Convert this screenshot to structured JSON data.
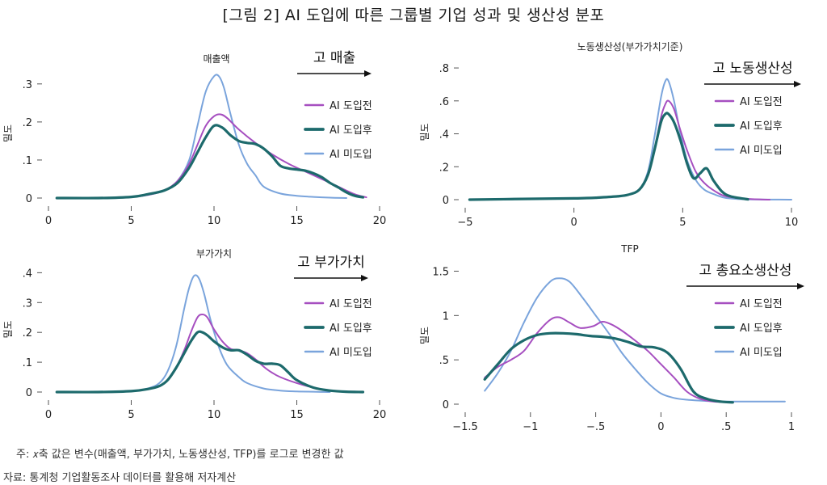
{
  "title": "[그림 2] AI 도입에 따른 그룹별 기업 성과 및 생산성 분포",
  "colors": {
    "before": "#a64fc0",
    "after": "#1d6a6c",
    "none": "#7aa4dc",
    "axis": "#555555"
  },
  "legend_labels": [
    "AI 도입전",
    "AI 도입후",
    "AI 미도입"
  ],
  "footnote": "주: 𝑥축 값은 변수(매출액, 부가가치, 노동생산성, TFP)를 로그로 변경한 값",
  "source": "자료: 통계청 기업활동조사 데이터를 활용해 저자계산",
  "chart_data": [
    {
      "type": "line",
      "title": "매출액",
      "ylabel": "밀도",
      "annotation": "고 매출",
      "xlim": [
        0,
        20
      ],
      "ylim": [
        0,
        0.34
      ],
      "xticks": [
        0,
        5,
        10,
        15,
        20
      ],
      "xtick_labels": [
        "0",
        "5",
        "10",
        "15",
        "20"
      ],
      "yticks": [
        0,
        0.1,
        0.2,
        0.3
      ],
      "ytick_labels": [
        "0",
        ".1",
        ".2",
        ".3"
      ],
      "series": [
        {
          "name": "AI 도입전",
          "key": "before",
          "x": [
            0.5,
            3,
            5,
            6,
            7,
            7.8,
            8.5,
            9,
            9.5,
            10,
            10.4,
            10.8,
            11.5,
            12.5,
            13.5,
            14.5,
            15.5,
            16.5,
            17.5,
            18.5,
            19.2
          ],
          "y": [
            0,
            0,
            0.003,
            0.008,
            0.02,
            0.045,
            0.09,
            0.14,
            0.19,
            0.215,
            0.22,
            0.21,
            0.18,
            0.145,
            0.115,
            0.09,
            0.07,
            0.05,
            0.03,
            0.01,
            0.002
          ]
        },
        {
          "name": "AI 도입후",
          "key": "after",
          "x": [
            0.5,
            3,
            5,
            6,
            7,
            7.8,
            8.5,
            9,
            9.5,
            10,
            10.5,
            11,
            11.5,
            12,
            12.5,
            13,
            13.5,
            14,
            14.5,
            15,
            15.5,
            16,
            16.5,
            17,
            17.5,
            18,
            18.5,
            19
          ],
          "y": [
            0,
            0,
            0.003,
            0.01,
            0.02,
            0.04,
            0.08,
            0.12,
            0.16,
            0.19,
            0.185,
            0.165,
            0.15,
            0.145,
            0.142,
            0.13,
            0.11,
            0.085,
            0.078,
            0.075,
            0.072,
            0.065,
            0.055,
            0.04,
            0.028,
            0.015,
            0.006,
            0.002
          ]
        },
        {
          "name": "AI 미도입",
          "key": "none",
          "x": [
            0.5,
            3,
            5,
            6,
            7,
            7.8,
            8.5,
            9,
            9.5,
            10,
            10.3,
            10.6,
            11,
            11.5,
            12,
            12.5,
            13,
            14,
            15,
            16,
            17,
            18
          ],
          "y": [
            0,
            0,
            0.003,
            0.008,
            0.02,
            0.045,
            0.1,
            0.19,
            0.28,
            0.32,
            0.32,
            0.29,
            0.22,
            0.14,
            0.09,
            0.06,
            0.03,
            0.012,
            0.006,
            0.003,
            0.001,
            0
          ]
        }
      ]
    },
    {
      "type": "line",
      "title": "노동생산성(부가가치기준)",
      "ylabel": "밀도",
      "annotation": "고 노동생산성",
      "xlim": [
        -5,
        10
      ],
      "ylim": [
        0,
        0.82
      ],
      "xticks": [
        -5,
        0,
        5,
        10
      ],
      "xtick_labels": [
        "−5",
        "0",
        "5",
        "10"
      ],
      "yticks": [
        0,
        0.2,
        0.4,
        0.6,
        0.8
      ],
      "ytick_labels": [
        "0",
        ".2",
        ".4",
        ".6",
        ".8"
      ],
      "series": [
        {
          "name": "AI 도입전",
          "key": "before",
          "x": [
            -4.8,
            -2,
            0,
            1,
            2,
            2.5,
            3,
            3.4,
            3.7,
            4,
            4.2,
            4.35,
            4.6,
            4.9,
            5.2,
            5.6,
            6,
            6.5,
            7,
            8,
            9
          ],
          "y": [
            0,
            0.005,
            0.008,
            0.012,
            0.02,
            0.03,
            0.06,
            0.15,
            0.3,
            0.5,
            0.58,
            0.6,
            0.55,
            0.42,
            0.3,
            0.17,
            0.1,
            0.05,
            0.02,
            0.005,
            0
          ]
        },
        {
          "name": "AI 도입후",
          "key": "after",
          "x": [
            -4.8,
            -2,
            0,
            1,
            2,
            2.5,
            3,
            3.4,
            3.7,
            4,
            4.2,
            4.35,
            4.6,
            4.9,
            5.2,
            5.5,
            5.8,
            6.1,
            6.4,
            6.8,
            7.2,
            8
          ],
          "y": [
            0,
            0.005,
            0.008,
            0.012,
            0.02,
            0.03,
            0.06,
            0.15,
            0.3,
            0.47,
            0.52,
            0.52,
            0.47,
            0.36,
            0.22,
            0.13,
            0.16,
            0.19,
            0.12,
            0.05,
            0.02,
            0.002
          ]
        },
        {
          "name": "AI 미도입",
          "key": "none",
          "x": [
            -4.8,
            -3,
            -2,
            0,
            1,
            2,
            2.5,
            3,
            3.4,
            3.7,
            4,
            4.2,
            4.35,
            4.6,
            4.9,
            5.2,
            5.6,
            6,
            6.5,
            7,
            8,
            10
          ],
          "y": [
            0,
            0.002,
            0.005,
            0.008,
            0.012,
            0.02,
            0.03,
            0.06,
            0.17,
            0.38,
            0.62,
            0.72,
            0.72,
            0.6,
            0.4,
            0.24,
            0.12,
            0.06,
            0.03,
            0.01,
            0.002,
            0
          ]
        }
      ]
    },
    {
      "type": "line",
      "title": "부가가치",
      "ylabel": "밀도",
      "annotation": "고 부가가치",
      "xlim": [
        0,
        20
      ],
      "ylim": [
        0,
        0.42
      ],
      "xticks": [
        0,
        5,
        10,
        15,
        20
      ],
      "xtick_labels": [
        "0",
        "5",
        "10",
        "15",
        "20"
      ],
      "yticks": [
        0,
        0.1,
        0.2,
        0.3,
        0.4
      ],
      "ytick_labels": [
        "0",
        ".1",
        ".2",
        ".3",
        ".4"
      ],
      "series": [
        {
          "name": "AI 도입전",
          "key": "before",
          "x": [
            0.5,
            3,
            5,
            6,
            6.7,
            7.2,
            7.7,
            8.2,
            8.6,
            9,
            9.3,
            9.6,
            10,
            10.5,
            11,
            11.5,
            12,
            12.5,
            13,
            13.5,
            14,
            15,
            16,
            17,
            18,
            19
          ],
          "y": [
            0,
            0,
            0.003,
            0.01,
            0.02,
            0.04,
            0.08,
            0.14,
            0.2,
            0.25,
            0.26,
            0.25,
            0.21,
            0.17,
            0.145,
            0.14,
            0.13,
            0.11,
            0.085,
            0.065,
            0.05,
            0.03,
            0.015,
            0.005,
            0.001,
            0
          ]
        },
        {
          "name": "AI 도입후",
          "key": "after",
          "x": [
            0.5,
            3,
            5,
            6,
            6.7,
            7.2,
            7.7,
            8.2,
            8.6,
            9,
            9.3,
            9.6,
            10,
            10.5,
            11,
            11.5,
            12,
            12.5,
            13,
            13.5,
            14,
            14.5,
            15,
            16,
            17,
            18,
            19
          ],
          "y": [
            0,
            0,
            0.003,
            0.01,
            0.02,
            0.04,
            0.08,
            0.13,
            0.17,
            0.2,
            0.2,
            0.19,
            0.17,
            0.15,
            0.14,
            0.14,
            0.125,
            0.105,
            0.095,
            0.095,
            0.09,
            0.065,
            0.04,
            0.015,
            0.005,
            0.001,
            0
          ]
        },
        {
          "name": "AI 미도입",
          "key": "none",
          "x": [
            0.5,
            3,
            5,
            6,
            6.7,
            7.2,
            7.7,
            8.2,
            8.5,
            8.8,
            9.1,
            9.4,
            9.8,
            10.3,
            10.8,
            11.5,
            12,
            13,
            14,
            15,
            16,
            17
          ],
          "y": [
            0,
            0,
            0.003,
            0.012,
            0.03,
            0.07,
            0.15,
            0.28,
            0.35,
            0.39,
            0.38,
            0.33,
            0.24,
            0.15,
            0.09,
            0.05,
            0.03,
            0.012,
            0.005,
            0.002,
            0.001,
            0
          ]
        }
      ]
    },
    {
      "type": "line",
      "title": "TFP",
      "ylabel": "밀도",
      "annotation": "고 총요소생산성",
      "xlim": [
        -1.5,
        1
      ],
      "ylim": [
        0,
        1.55
      ],
      "xticks": [
        -1.5,
        -1,
        -0.5,
        0,
        0.5,
        1
      ],
      "xtick_labels": [
        "−1.5",
        "−1",
        "−.5",
        "0",
        ".5",
        "1"
      ],
      "yticks": [
        0,
        0.5,
        1,
        1.5
      ],
      "ytick_labels": [
        "0",
        ".5",
        "1",
        "1.5"
      ],
      "series": [
        {
          "name": "AI 도입전",
          "key": "before",
          "x": [
            -1.35,
            -1.25,
            -1.15,
            -1.05,
            -0.95,
            -0.85,
            -0.78,
            -0.7,
            -0.62,
            -0.52,
            -0.45,
            -0.38,
            -0.3,
            -0.2,
            -0.1,
            0,
            0.1,
            0.2,
            0.3,
            0.4,
            0.55
          ],
          "y": [
            0.3,
            0.42,
            0.5,
            0.6,
            0.8,
            0.95,
            0.98,
            0.92,
            0.86,
            0.88,
            0.93,
            0.9,
            0.83,
            0.72,
            0.6,
            0.45,
            0.3,
            0.14,
            0.06,
            0.03,
            0.02
          ]
        },
        {
          "name": "AI 도입후",
          "key": "after",
          "x": [
            -1.35,
            -1.25,
            -1.15,
            -1.05,
            -0.95,
            -0.85,
            -0.75,
            -0.65,
            -0.55,
            -0.45,
            -0.35,
            -0.25,
            -0.15,
            -0.05,
            0.05,
            0.15,
            0.25,
            0.35,
            0.45,
            0.55
          ],
          "y": [
            0.28,
            0.45,
            0.62,
            0.72,
            0.78,
            0.8,
            0.8,
            0.79,
            0.77,
            0.76,
            0.74,
            0.7,
            0.65,
            0.64,
            0.58,
            0.4,
            0.14,
            0.06,
            0.03,
            0.02
          ]
        },
        {
          "name": "AI 미도입",
          "key": "none",
          "x": [
            -1.35,
            -1.25,
            -1.15,
            -1.05,
            -0.95,
            -0.85,
            -0.78,
            -0.7,
            -0.6,
            -0.5,
            -0.4,
            -0.3,
            -0.2,
            -0.1,
            0,
            0.1,
            0.2,
            0.3,
            0.45,
            0.6,
            0.8,
            0.95
          ],
          "y": [
            0.15,
            0.35,
            0.6,
            0.92,
            1.2,
            1.38,
            1.42,
            1.38,
            1.2,
            1.0,
            0.8,
            0.58,
            0.4,
            0.24,
            0.12,
            0.07,
            0.05,
            0.04,
            0.03,
            0.03,
            0.03,
            0.03
          ]
        }
      ]
    }
  ]
}
